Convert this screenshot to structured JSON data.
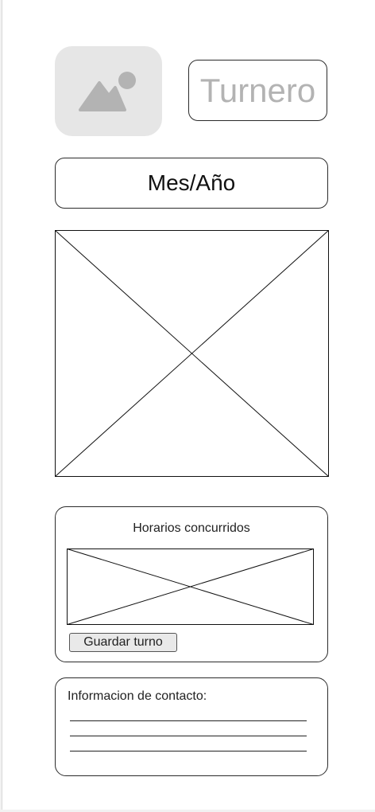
{
  "header": {
    "logo_icon": "image-placeholder-icon",
    "app_title": "Turnero"
  },
  "calendar": {
    "month_year_label": "Mes/Año",
    "view_icon": "placeholder-x-icon"
  },
  "horarios": {
    "title": "Horarios concurridos",
    "chart_icon": "placeholder-x-icon",
    "save_button_label": "Guardar turno"
  },
  "contact": {
    "title": "Informacion de contacto:",
    "lines": [
      "",
      "",
      ""
    ]
  },
  "colors": {
    "placeholder_fill": "#e6e6e6",
    "placeholder_glyph": "#b3b3b3",
    "border": "#2b2b2b",
    "button_fill": "#e9e9e9"
  }
}
